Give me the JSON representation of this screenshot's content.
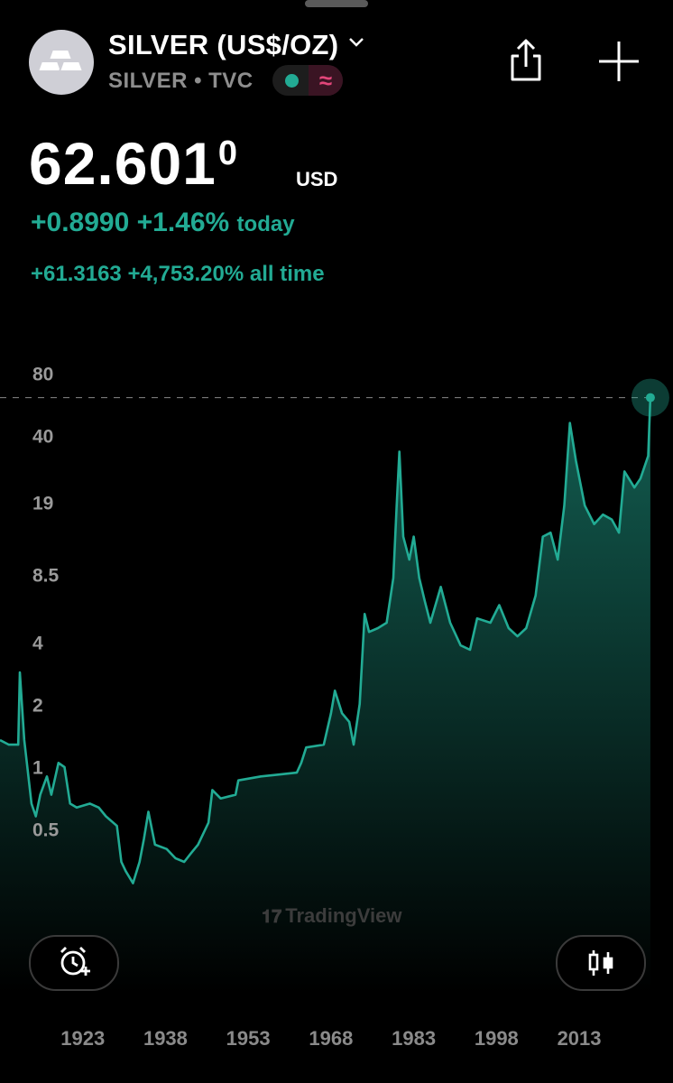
{
  "header": {
    "title": "SILVER (US$/OZ)",
    "subtitle": "SILVER • TVC",
    "price": "62.601",
    "price_suffix": "0",
    "currency": "USD",
    "change_today": "+0.8990 +1.46%",
    "today_label": "today",
    "change_all_time": "+61.3163 +4,753.20% all time",
    "watermark": "TradingView"
  },
  "chart_data": {
    "type": "area",
    "color": "#22ab94",
    "log_scale": true,
    "grid": false,
    "x": [
      1908,
      1909.6,
      1911.3,
      1911.6,
      1912.4,
      1913.7,
      1914.5,
      1915.3,
      1916.5,
      1917.3,
      1918.6,
      1919.7,
      1920.7,
      1921.9,
      1924.3,
      1925.9,
      1927.2,
      1929.2,
      1930,
      1930.8,
      1932.1,
      1933.3,
      1934.1,
      1934.9,
      1936.1,
      1938.2,
      1939.8,
      1941.4,
      1942.6,
      1943.9,
      1945.8,
      1946.5,
      1948,
      1950.7,
      1951.2,
      1955.3,
      1958.6,
      1961.8,
      1962.6,
      1963.5,
      1966.7,
      1968,
      1968.7,
      1970,
      1971.3,
      1972.1,
      1973.2,
      1974.1,
      1974.9,
      1976.5,
      1978.1,
      1979.3,
      1979.9,
      1980.4,
      1981.1,
      1982.2,
      1983,
      1984,
      1985,
      1986,
      1987.9,
      1989.6,
      1991.5,
      1993.2,
      1994.5,
      1996.9,
      1998.5,
      2000.2,
      2001.8,
      2003.4,
      2005.1,
      2006.4,
      2007.8,
      2009.1,
      2010.3,
      2011.3,
      2012.4,
      2014,
      2015.7,
      2017.3,
      2018.9,
      2020.2,
      2021.2,
      2023,
      2024.1,
      2025.5,
      2025.9
    ],
    "values": [
      1.38,
      1.31,
      1.31,
      2.93,
      1.38,
      0.68,
      0.59,
      0.75,
      0.92,
      0.75,
      1.07,
      1.02,
      0.68,
      0.65,
      0.68,
      0.65,
      0.59,
      0.53,
      0.355,
      0.32,
      0.28,
      0.355,
      0.46,
      0.62,
      0.43,
      0.41,
      0.37,
      0.355,
      0.39,
      0.43,
      0.55,
      0.79,
      0.72,
      0.75,
      0.88,
      0.92,
      0.94,
      0.96,
      1.07,
      1.27,
      1.31,
      1.86,
      2.39,
      1.86,
      1.69,
      1.31,
      2.06,
      5.62,
      4.6,
      4.8,
      5.1,
      8.4,
      18.8,
      34.3,
      13.3,
      10.3,
      13.3,
      8.4,
      6.5,
      5.1,
      7.6,
      5.1,
      3.96,
      3.77,
      5.35,
      5.1,
      6.2,
      4.8,
      4.38,
      4.8,
      6.9,
      13.3,
      13.9,
      10.3,
      18.8,
      47.2,
      31,
      18.8,
      15.3,
      17,
      16.1,
      13.9,
      27.5,
      23,
      25.4,
      32.7,
      62.601
    ],
    "xlim": [
      1908,
      2030
    ],
    "xticks": [
      1923,
      1938,
      1953,
      1968,
      1983,
      1998,
      2013
    ],
    "ylim": [
      0.1,
      100
    ],
    "yticks": [
      80,
      40,
      19,
      8.5,
      4,
      2,
      1,
      0.5
    ]
  }
}
